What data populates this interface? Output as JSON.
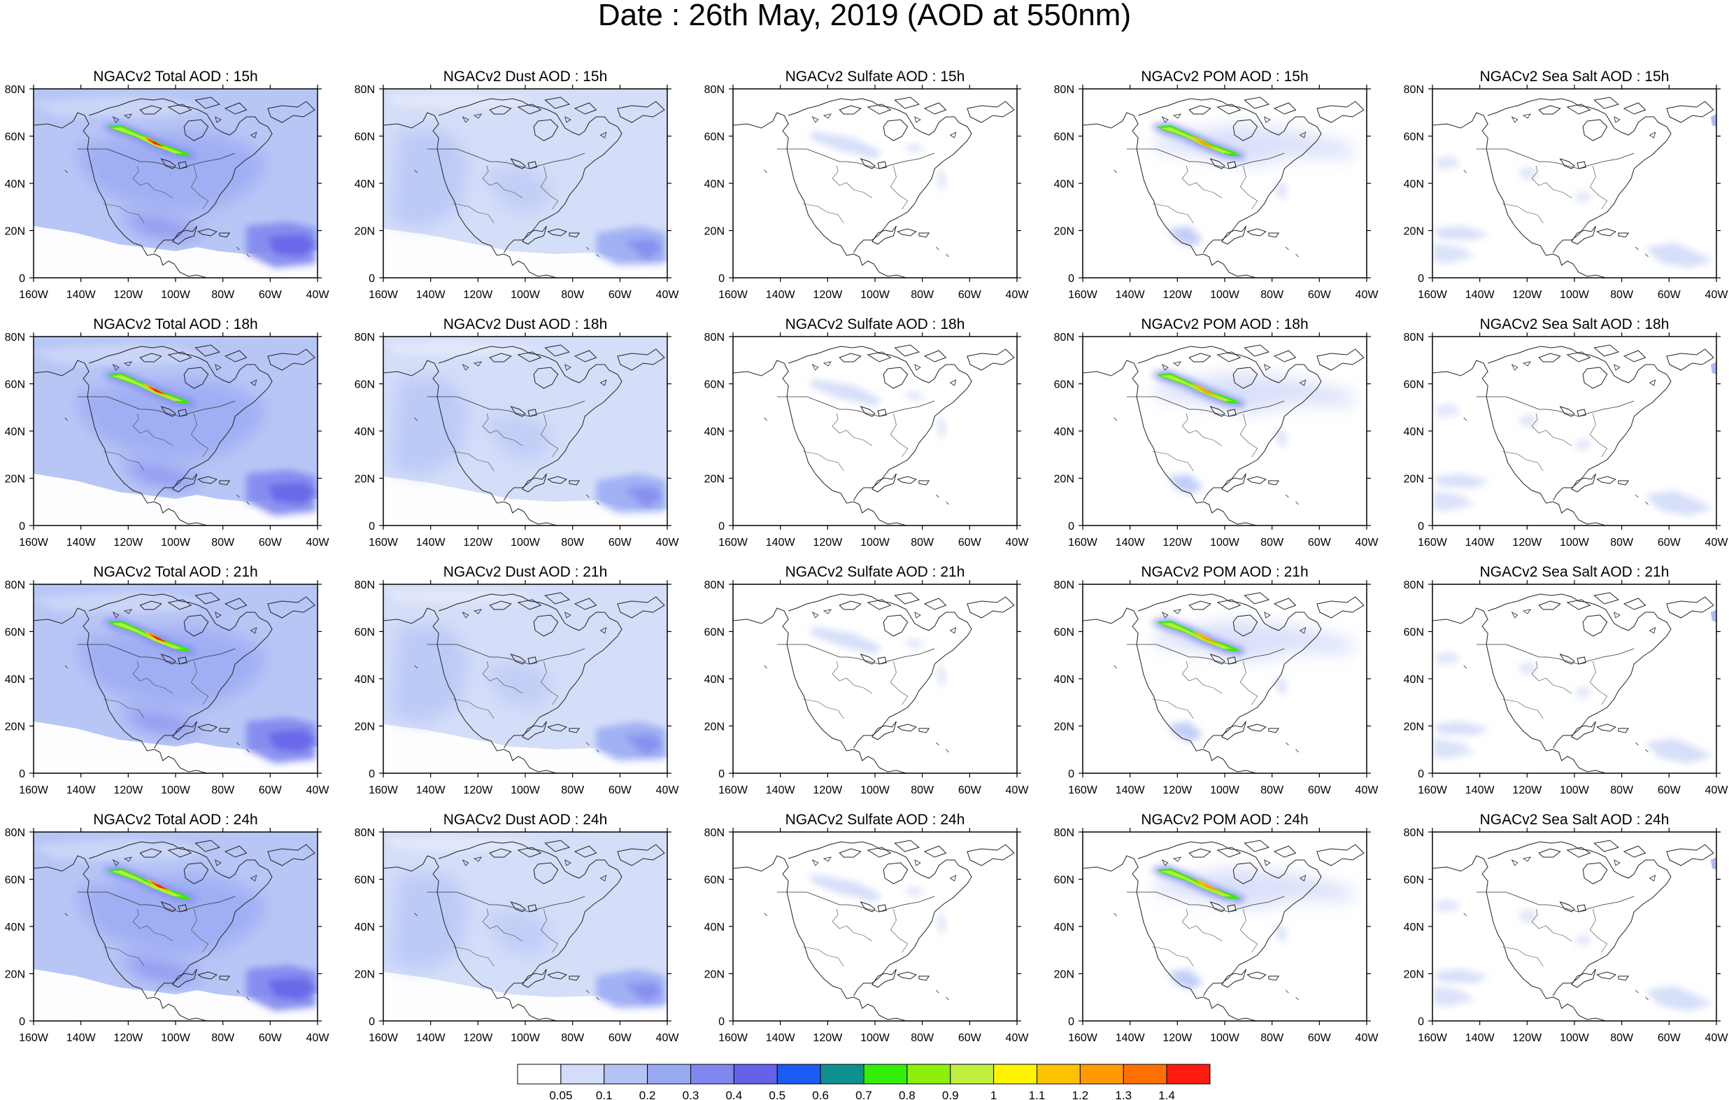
{
  "title": "Date : 26th May, 2019 (AOD at 550nm)",
  "row_hours": [
    "15h",
    "18h",
    "21h",
    "24h"
  ],
  "panels": [
    {
      "key": "total",
      "titles": [
        "NGACv2 Total AOD : 15h",
        "NGACv2 Total AOD : 18h",
        "NGACv2 Total AOD : 21h",
        "NGACv2 Total AOD : 24h"
      ]
    },
    {
      "key": "dust",
      "titles": [
        "NGACv2 Dust AOD : 15h",
        "NGACv2 Dust AOD : 18h",
        "NGACv2 Dust AOD : 21h",
        "NGACv2 Dust AOD : 24h"
      ]
    },
    {
      "key": "sulfate",
      "titles": [
        "NGACv2 Sulfate AOD : 15h",
        "NGACv2 Sulfate AOD : 18h",
        "NGACv2 Sulfate AOD : 21h",
        "NGACv2 Sulfate AOD : 24h"
      ]
    },
    {
      "key": "pom",
      "titles": [
        "NGACv2 POM AOD : 15h",
        "NGACv2 POM AOD : 18h",
        "NGACv2 POM AOD : 21h",
        "NGACv2 POM AOD : 24h"
      ]
    },
    {
      "key": "seasalt",
      "titles": [
        "NGACv2 Sea Salt AOD : 15h",
        "NGACv2 Sea Salt AOD : 18h",
        "NGACv2 Sea Salt AOD : 21h",
        "NGACv2 Sea Salt  AOD : 24h"
      ]
    }
  ],
  "lat_labels": [
    "80N",
    "60N",
    "40N",
    "20N",
    "0"
  ],
  "lon_labels": [
    "160W",
    "140W",
    "120W",
    "100W",
    "80W",
    "60W",
    "40W"
  ],
  "colorbar": {
    "colors": [
      "#ffffff",
      "#d3dcf8",
      "#b4c3f5",
      "#98a9f2",
      "#7f88ee",
      "#6462e8",
      "#1a5cf2",
      "#0f9090",
      "#33ee05",
      "#8cf00a",
      "#c1f03c",
      "#fff500",
      "#ffc200",
      "#ff9a00",
      "#ff7000",
      "#ff1a10"
    ],
    "labels": [
      "0.05",
      "0.1",
      "0.2",
      "0.3",
      "0.4",
      "0.5",
      "0.6",
      "0.7",
      "0.8",
      "0.9",
      "1",
      "1.1",
      "1.2",
      "1.3",
      "1.4"
    ]
  }
}
